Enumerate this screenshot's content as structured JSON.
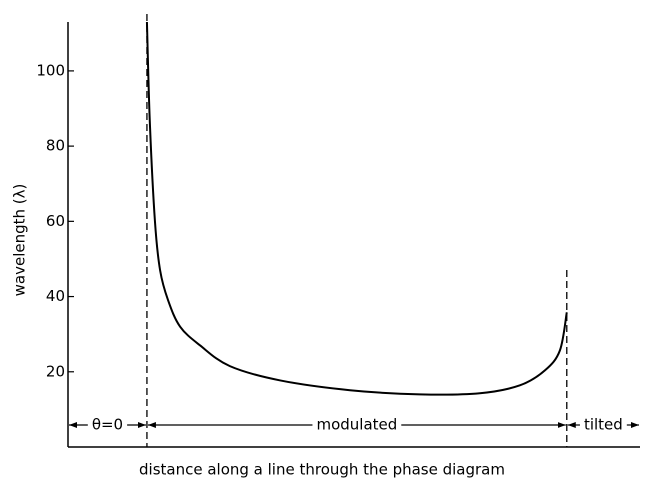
{
  "chart_data": {
    "type": "line",
    "xlabel": "distance along a line through the phase diagram",
    "ylabel": "wavelength (λ)",
    "xlim": [
      0,
      100
    ],
    "ylim": [
      0,
      113
    ],
    "yticks": [
      20,
      40,
      60,
      80,
      100
    ],
    "color": "#000000",
    "x": [
      13.8,
      14.3,
      15.2,
      16.1,
      17.5,
      19.6,
      23.1,
      28.3,
      37.1,
      49.3,
      61.5,
      72.0,
      79.0,
      83.4,
      86.0,
      87.2
    ],
    "values": [
      113,
      86.6,
      60,
      47,
      39,
      32,
      27,
      21.5,
      17.7,
      15.1,
      14,
      14.3,
      16.4,
      20.4,
      25.7,
      35.8
    ],
    "boundaries": [
      13.8,
      87.2
    ],
    "regions": [
      {
        "label": "θ=0"
      },
      {
        "label": "modulated"
      },
      {
        "label": "tilted"
      }
    ]
  }
}
